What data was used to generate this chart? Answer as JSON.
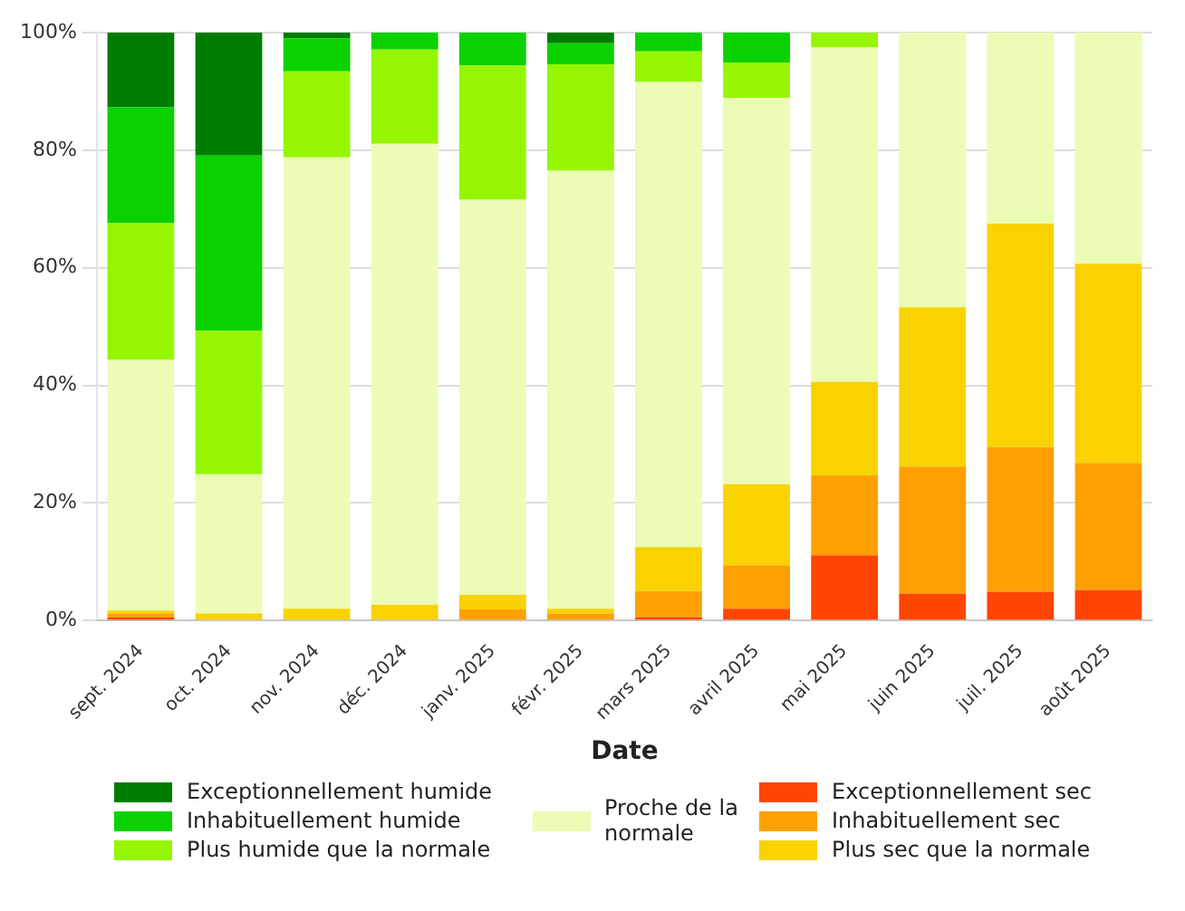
{
  "chart_data": {
    "type": "bar",
    "stacked": true,
    "xlabel": "Date",
    "categories": [
      "sept. 2024",
      "oct. 2024",
      "nov. 2024",
      "déc. 2024",
      "janv. 2025",
      "févr. 2025",
      "mars 2025",
      "avril 2025",
      "mai 2025",
      "juin 2025",
      "juil. 2025",
      "août 2025"
    ],
    "series": [
      {
        "name": "Exceptionnellement sec",
        "color": "#ff4500",
        "values": [
          0.5,
          0,
          0,
          0,
          0,
          0,
          0.6,
          2.0,
          11.1,
          4.6,
          4.9,
          5.2
        ]
      },
      {
        "name": "Inhabituellement sec",
        "color": "#ffa000",
        "values": [
          0.7,
          0,
          0,
          0,
          1.9,
          1.2,
          4.4,
          7.4,
          13.6,
          21.6,
          24.6,
          21.6
        ]
      },
      {
        "name": "Plus sec que la normale",
        "color": "#fad200",
        "values": [
          0.5,
          1.2,
          2.0,
          2.7,
          2.5,
          0.8,
          7.5,
          13.8,
          15.9,
          27.1,
          38.0,
          33.9
        ]
      },
      {
        "name": "Proche de la normale",
        "color": "#ebfcb4",
        "values": [
          42.7,
          23.7,
          76.8,
          78.4,
          67.2,
          74.5,
          79.1,
          65.7,
          56.9,
          46.7,
          32.5,
          39.3
        ]
      },
      {
        "name": "Plus humide que la normale",
        "color": "#96f500",
        "values": [
          23.2,
          24.4,
          14.6,
          16.0,
          22.8,
          18.1,
          5.2,
          6.0,
          2.5,
          0,
          0,
          0
        ]
      },
      {
        "name": "Inhabituellement humide",
        "color": "#0ad200",
        "values": [
          19.7,
          29.8,
          5.6,
          2.9,
          5.6,
          3.6,
          3.2,
          5.1,
          0,
          0,
          0,
          0
        ]
      },
      {
        "name": "Exceptionnellement humide",
        "color": "#007d00",
        "values": [
          12.7,
          20.9,
          1.0,
          0,
          0,
          1.8,
          0,
          0,
          0,
          0,
          0,
          0
        ]
      }
    ],
    "ylim": [
      0,
      100
    ],
    "yticks": [
      {
        "value": 0,
        "label": "0%"
      },
      {
        "value": 20,
        "label": "20%"
      },
      {
        "value": 40,
        "label": "40%"
      },
      {
        "value": 60,
        "label": "60%"
      },
      {
        "value": 80,
        "label": "80%"
      },
      {
        "value": 100,
        "label": "100%"
      }
    ],
    "grid": "y",
    "legend": "bottom"
  }
}
